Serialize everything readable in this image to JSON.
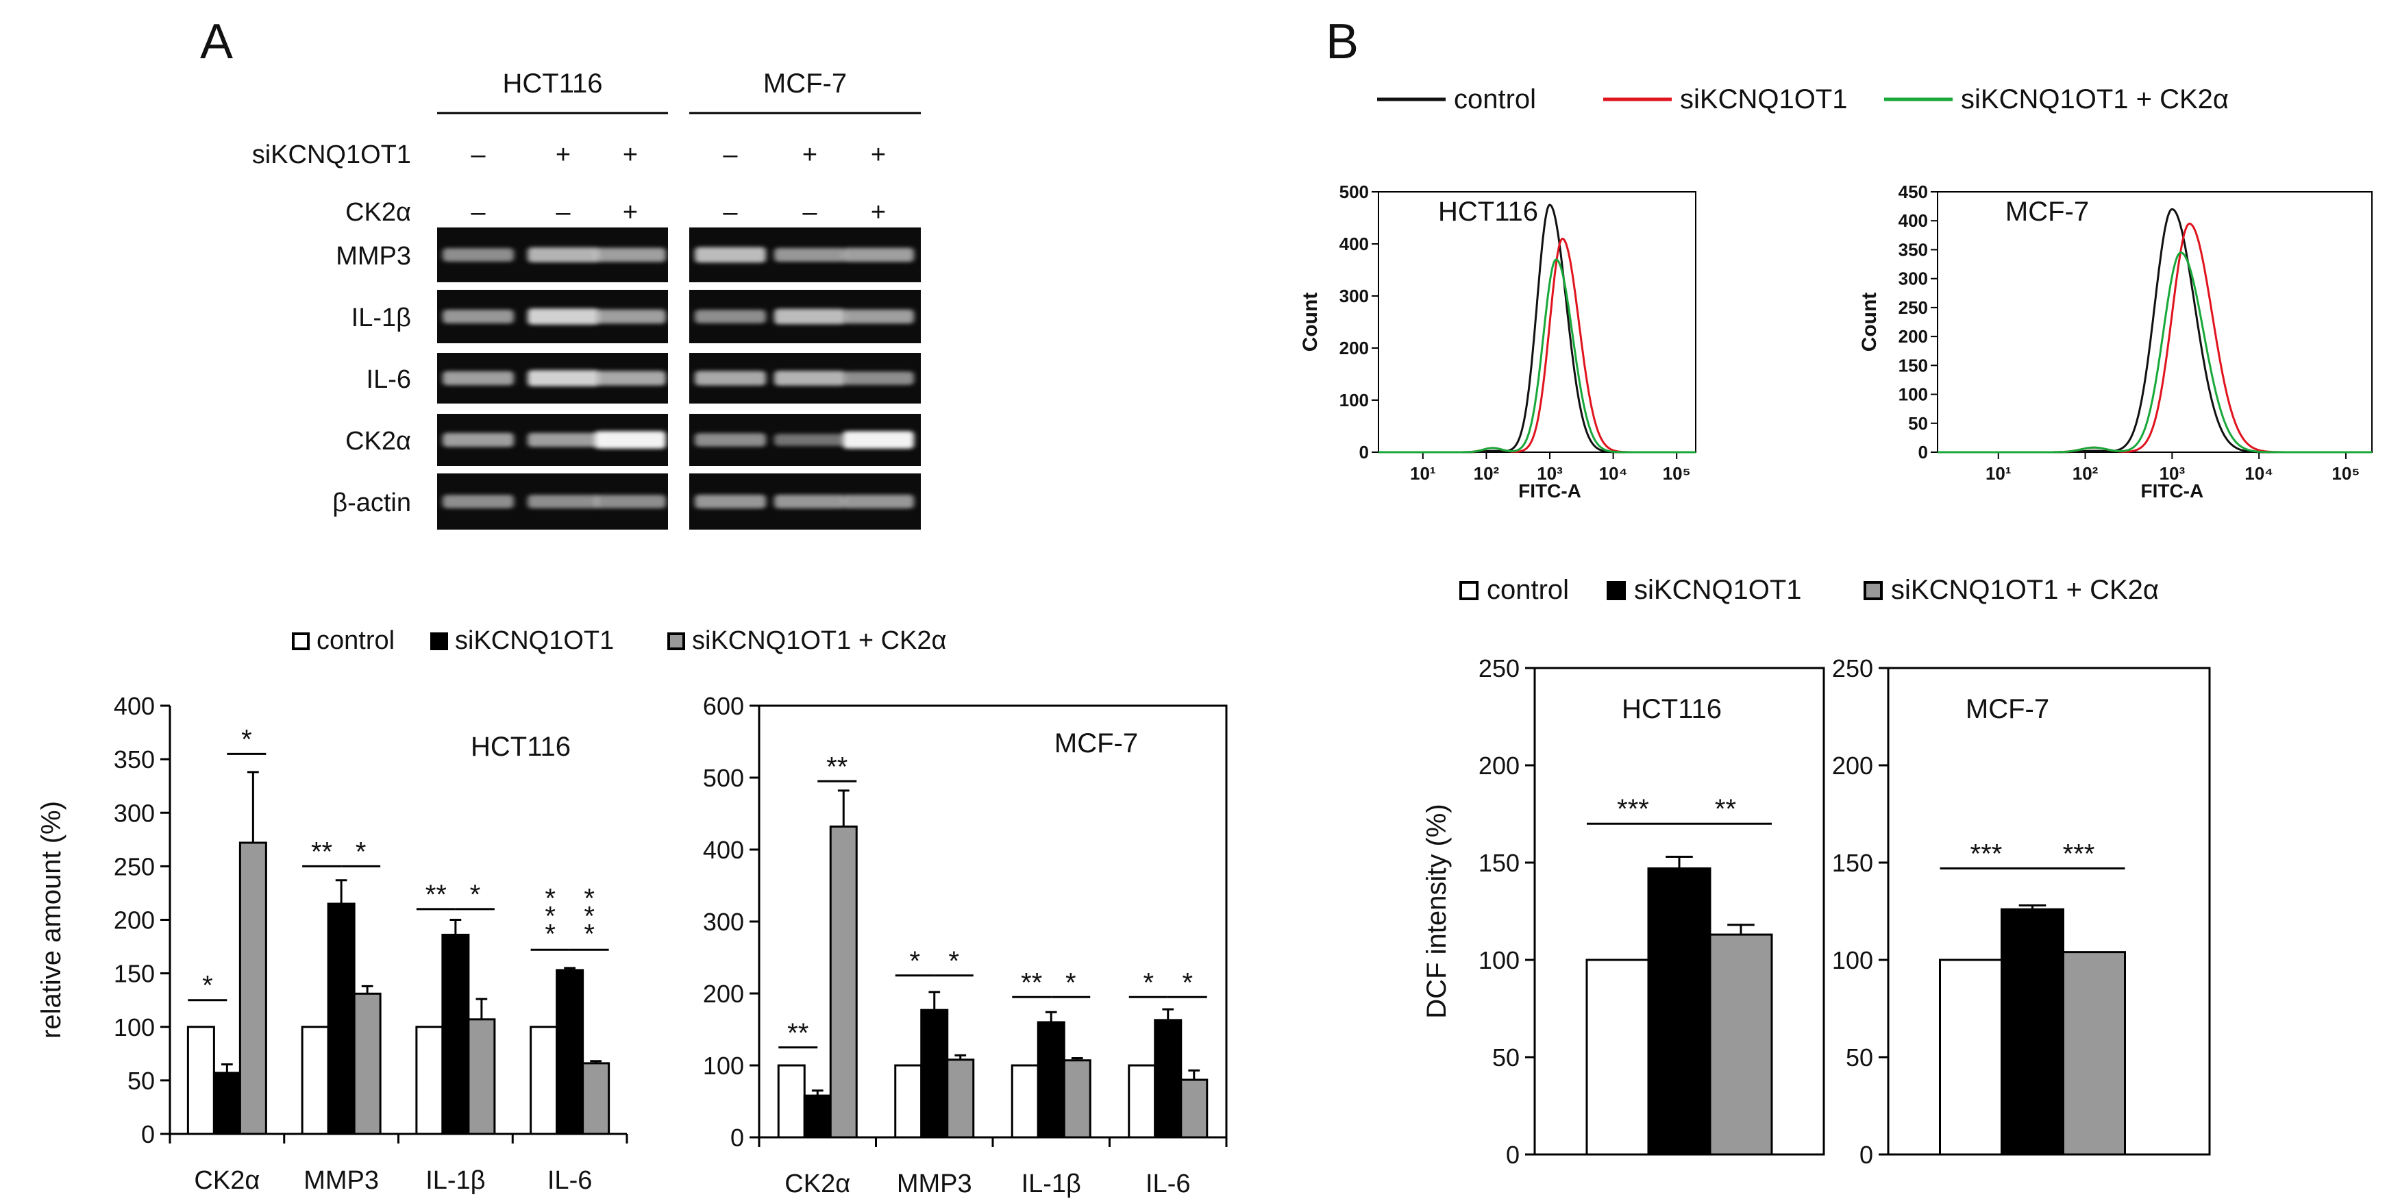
{
  "panel_a": {
    "letter": "A",
    "cell_lines": [
      "HCT116",
      "MCF-7"
    ],
    "conditions": [
      {
        "label": "siKCNQ1OT1",
        "signs": [
          "–",
          "+",
          "+",
          "–",
          "+",
          "+"
        ]
      },
      {
        "label": "CK2α",
        "signs": [
          "–",
          "–",
          "+",
          "–",
          "–",
          "+"
        ]
      }
    ],
    "gel_rows": [
      "MMP3",
      "IL-1β",
      "IL-6",
      "CK2α",
      "β-actin"
    ],
    "legend": [
      "control",
      "siKCNQ1OT1",
      "siKCNQ1OT1 + CK2α"
    ]
  },
  "panel_b": {
    "letter": "B",
    "legend_top": [
      "control",
      "siKCNQ1OT1",
      "siKCNQ1OT1 + CK2α"
    ],
    "legend_bottom": [
      "control",
      "siKCNQ1OT1",
      "siKCNQ1OT1 + CK2α"
    ]
  },
  "colors": {
    "control": "#ffffff",
    "siKCNQ1OT1": "#000000",
    "rescue": "#999999",
    "flow_control": "#111111",
    "flow_si": "#e0141e",
    "flow_rescue": "#19a83a"
  },
  "chart_data": [
    {
      "id": "a-hct116",
      "type": "bar",
      "title": "HCT116",
      "ylabel": "relative amount (%)",
      "ylim": [
        0,
        400
      ],
      "yticks": [
        0,
        50,
        100,
        150,
        200,
        250,
        300,
        350,
        400
      ],
      "categories": [
        "CK2α",
        "MMP3",
        "IL-1β",
        "IL-6"
      ],
      "series": [
        {
          "name": "control",
          "values": [
            100,
            100,
            100,
            100
          ],
          "errors": [
            0,
            0,
            0,
            0
          ]
        },
        {
          "name": "siKCNQ1OT1",
          "values": [
            57,
            215,
            186,
            153
          ],
          "errors": [
            8,
            22,
            14,
            2
          ]
        },
        {
          "name": "siKCNQ1OT1 + CK2α",
          "values": [
            272,
            131,
            107,
            66
          ],
          "errors": [
            66,
            7,
            19,
            2
          ]
        }
      ],
      "significance": [
        {
          "category": 0,
          "pair": "control-si",
          "label": "*",
          "level": 125
        },
        {
          "category": 0,
          "pair": "si-rescue",
          "label": "*",
          "level": 355
        },
        {
          "category": 1,
          "pair": "control-si",
          "label": "**",
          "level": 250
        },
        {
          "category": 1,
          "pair": "si-rescue",
          "label": "*",
          "level": 250
        },
        {
          "category": 2,
          "pair": "control-si",
          "label": "**",
          "level": 210
        },
        {
          "category": 2,
          "pair": "si-rescue",
          "label": "*",
          "level": 210
        },
        {
          "category": 3,
          "pair": "control-si",
          "label": "***",
          "level": 172
        },
        {
          "category": 3,
          "pair": "si-rescue",
          "label": "***",
          "level": 172
        }
      ]
    },
    {
      "id": "a-mcf7",
      "type": "bar",
      "title": "MCF-7",
      "ylabel": "",
      "ylim": [
        0,
        600
      ],
      "yticks": [
        0,
        100,
        200,
        300,
        400,
        500,
        600
      ],
      "categories": [
        "CK2α",
        "MMP3",
        "IL-1β",
        "IL-6"
      ],
      "series": [
        {
          "name": "control",
          "values": [
            100,
            100,
            100,
            100
          ],
          "errors": [
            0,
            0,
            0,
            0
          ]
        },
        {
          "name": "siKCNQ1OT1",
          "values": [
            58,
            177,
            160,
            163
          ],
          "errors": [
            7,
            25,
            14,
            15
          ]
        },
        {
          "name": "siKCNQ1OT1 + CK2α",
          "values": [
            432,
            108,
            107,
            80
          ],
          "errors": [
            50,
            6,
            3,
            13
          ]
        }
      ],
      "significance": [
        {
          "category": 0,
          "pair": "control-si",
          "label": "**",
          "level": 125
        },
        {
          "category": 0,
          "pair": "si-rescue",
          "label": "**",
          "level": 495
        },
        {
          "category": 1,
          "pair": "control-si",
          "label": "*",
          "level": 225
        },
        {
          "category": 1,
          "pair": "si-rescue",
          "label": "*",
          "level": 225
        },
        {
          "category": 2,
          "pair": "control-si",
          "label": "**",
          "level": 195
        },
        {
          "category": 2,
          "pair": "si-rescue",
          "label": "*",
          "level": 195
        },
        {
          "category": 3,
          "pair": "control-si",
          "label": "*",
          "level": 195
        },
        {
          "category": 3,
          "pair": "si-rescue",
          "label": "*",
          "level": 195
        }
      ]
    },
    {
      "id": "b-flow-hct116",
      "type": "line",
      "title": "HCT116",
      "xlabel": "FITC-A",
      "ylabel": "Count",
      "ylim": [
        0,
        500
      ],
      "yticks": [
        0,
        100,
        200,
        300,
        400,
        500
      ],
      "xticks": [
        "10¹",
        "10²",
        "10³",
        "10⁴",
        "10⁵"
      ],
      "series": [
        {
          "name": "control",
          "peak_log": 3.0,
          "peak_count": 475
        },
        {
          "name": "siKCNQ1OT1",
          "peak_log": 3.2,
          "peak_count": 410
        },
        {
          "name": "siKCNQ1OT1 + CK2α",
          "peak_log": 3.1,
          "peak_count": 370
        }
      ]
    },
    {
      "id": "b-flow-mcf7",
      "type": "line",
      "title": "MCF-7",
      "xlabel": "FITC-A",
      "ylabel": "Count",
      "ylim": [
        0,
        450
      ],
      "yticks": [
        0,
        50,
        100,
        150,
        200,
        250,
        300,
        350,
        400,
        450
      ],
      "xticks": [
        "10¹",
        "10²",
        "10³",
        "10⁴",
        "10⁵"
      ],
      "series": [
        {
          "name": "control",
          "peak_log": 3.0,
          "peak_count": 420
        },
        {
          "name": "siKCNQ1OT1",
          "peak_log": 3.2,
          "peak_count": 395
        },
        {
          "name": "siKCNQ1OT1 + CK2α",
          "peak_log": 3.1,
          "peak_count": 345
        }
      ]
    },
    {
      "id": "b-dcf-hct116",
      "type": "bar",
      "title": "HCT116",
      "ylabel": "DCF intensity (%)",
      "ylim": [
        0,
        250
      ],
      "yticks": [
        0,
        50,
        100,
        150,
        200,
        250
      ],
      "categories": [
        ""
      ],
      "series": [
        {
          "name": "control",
          "values": [
            100
          ],
          "errors": [
            0
          ]
        },
        {
          "name": "siKCNQ1OT1",
          "values": [
            147
          ],
          "errors": [
            6
          ]
        },
        {
          "name": "siKCNQ1OT1 + CK2α",
          "values": [
            113
          ],
          "errors": [
            5
          ]
        }
      ],
      "significance": [
        {
          "category": 0,
          "pair": "control-si",
          "label": "***",
          "level": 170
        },
        {
          "category": 0,
          "pair": "si-rescue",
          "label": "**",
          "level": 170
        }
      ]
    },
    {
      "id": "b-dcf-mcf7",
      "type": "bar",
      "title": "MCF-7",
      "ylabel": "",
      "ylim": [
        0,
        250
      ],
      "yticks": [
        0,
        50,
        100,
        150,
        200,
        250
      ],
      "categories": [
        ""
      ],
      "series": [
        {
          "name": "control",
          "values": [
            100
          ],
          "errors": [
            0
          ]
        },
        {
          "name": "siKCNQ1OT1",
          "values": [
            126
          ],
          "errors": [
            2
          ]
        },
        {
          "name": "siKCNQ1OT1 + CK2α",
          "values": [
            104
          ],
          "errors": [
            0
          ]
        }
      ],
      "significance": [
        {
          "category": 0,
          "pair": "control-si",
          "label": "***",
          "level": 147
        },
        {
          "category": 0,
          "pair": "si-rescue",
          "label": "***",
          "level": 147
        }
      ]
    }
  ]
}
